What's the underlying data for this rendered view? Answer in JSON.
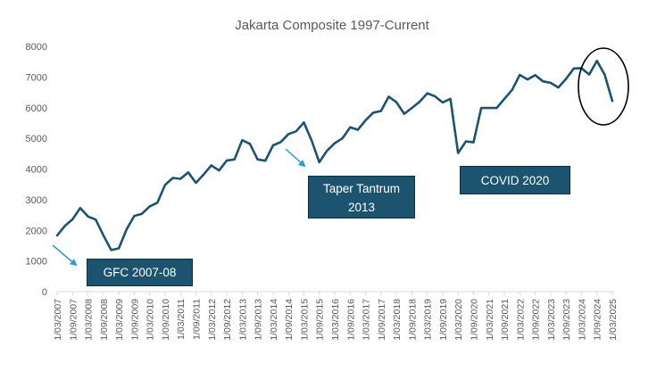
{
  "chart_data": {
    "type": "line",
    "title": "Jakarta Composite 1997-Current",
    "xlabel": "",
    "ylabel": "",
    "ylim": [
      0,
      8000
    ],
    "yticks": [
      0,
      1000,
      2000,
      3000,
      4000,
      5000,
      6000,
      7000,
      8000
    ],
    "ytick_labels": [
      "0",
      "1000",
      "2000",
      "3000",
      "4000",
      "5000",
      "6000",
      "7000",
      "8000"
    ],
    "x_tick_labels": [
      "1/03/2007",
      "1/09/2007",
      "1/03/2008",
      "1/09/2008",
      "1/03/2009",
      "1/09/2009",
      "1/03/2010",
      "1/09/2010",
      "1/03/2011",
      "1/09/2011",
      "1/03/2012",
      "1/09/2012",
      "1/03/2013",
      "1/09/2013",
      "1/03/2014",
      "1/09/2014",
      "1/03/2015",
      "1/09/2015",
      "1/03/2016",
      "1/09/2016",
      "1/03/2017",
      "1/09/2017",
      "1/03/2018",
      "1/09/2018",
      "1/03/2019",
      "1/09/2019",
      "1/03/2020",
      "1/09/2020",
      "1/03/2021",
      "1/09/2021",
      "1/03/2022",
      "1/09/2022",
      "1/03/2023",
      "1/09/2023",
      "1/03/2024",
      "1/09/2024",
      "1/03/2025"
    ],
    "grid": false,
    "legend": "none",
    "line_color": "#1c5470",
    "series": [
      {
        "x": [
          "2007-03",
          "2007-06",
          "2007-09",
          "2007-12",
          "2008-03",
          "2008-06",
          "2008-09",
          "2008-12",
          "2009-03",
          "2009-06",
          "2009-09",
          "2009-12",
          "2010-03",
          "2010-06",
          "2010-09",
          "2010-12",
          "2011-03",
          "2011-06",
          "2011-09",
          "2011-12",
          "2012-03",
          "2012-06",
          "2012-09",
          "2012-12",
          "2013-03",
          "2013-06",
          "2013-09",
          "2013-12",
          "2014-03",
          "2014-06",
          "2014-09",
          "2014-12",
          "2015-03",
          "2015-06",
          "2015-09",
          "2015-12",
          "2016-03",
          "2016-06",
          "2016-09",
          "2016-12",
          "2017-03",
          "2017-06",
          "2017-09",
          "2017-12",
          "2018-03",
          "2018-06",
          "2018-09",
          "2018-12",
          "2019-03",
          "2019-06",
          "2019-09",
          "2019-12",
          "2020-03",
          "2020-06",
          "2020-09",
          "2020-12",
          "2021-03",
          "2021-06",
          "2021-09",
          "2021-12",
          "2022-03",
          "2022-06",
          "2022-09",
          "2022-12",
          "2023-03",
          "2023-06",
          "2023-09",
          "2023-12",
          "2024-03",
          "2024-06",
          "2024-09",
          "2024-12",
          "2025-03"
        ],
        "values": [
          1830,
          2140,
          2360,
          2730,
          2450,
          2350,
          1840,
          1360,
          1410,
          2030,
          2470,
          2540,
          2780,
          2900,
          3480,
          3710,
          3680,
          3890,
          3550,
          3820,
          4120,
          3950,
          4280,
          4310,
          4940,
          4820,
          4310,
          4270,
          4770,
          4880,
          5140,
          5230,
          5520,
          4930,
          4220,
          4600,
          4840,
          5000,
          5360,
          5280,
          5590,
          5840,
          5890,
          6360,
          6180,
          5800,
          5990,
          6190,
          6470,
          6370,
          6170,
          6290,
          4520,
          4900,
          4870,
          5990,
          5990,
          5990,
          6290,
          6580,
          7070,
          6920,
          7060,
          6860,
          6810,
          6660,
          6940,
          7280,
          7290,
          7080,
          7530,
          7080,
          6220
        ]
      }
    ],
    "annotations": [
      {
        "label": "GFC 2007-08"
      },
      {
        "label": "Taper Tantrum\n2013"
      },
      {
        "label": "COVID 2020"
      }
    ]
  }
}
